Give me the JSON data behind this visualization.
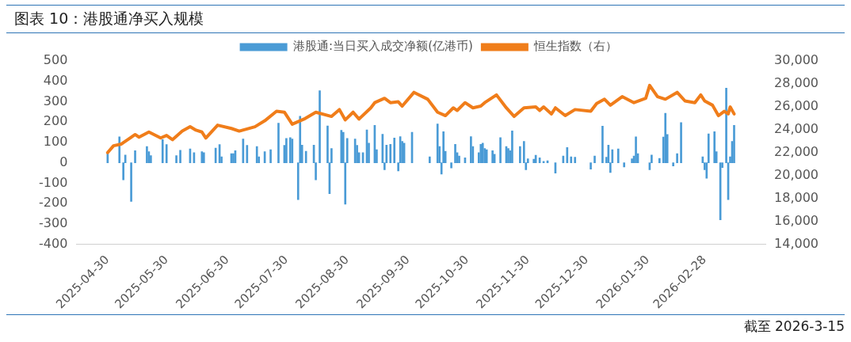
{
  "chart_data": {
    "type": "bar",
    "title": "图表 10：港股通净买入规模",
    "annotations": [
      "截至 2026-3-15"
    ],
    "xlim": [
      "2025-04-30",
      "2026-03-15"
    ],
    "xticks": [
      "2025-04-30",
      "2025-05-30",
      "2025-06-30",
      "2025-07-30",
      "2025-08-30",
      "2025-09-30",
      "2025-10-30",
      "2025-11-30",
      "2025-12-30",
      "2026-01-30",
      "2026-02-28"
    ],
    "ylim": [
      -400,
      500
    ],
    "yticks": [
      -400,
      -300,
      -200,
      -100,
      0,
      100,
      200,
      300,
      400,
      500
    ],
    "y2lim": [
      14000,
      30000
    ],
    "y2ticks": [
      {
        "value": 14000,
        "label": "14,000"
      },
      {
        "value": 16000,
        "label": "16,000"
      },
      {
        "value": 18000,
        "label": "18,000"
      },
      {
        "value": 20000,
        "label": "20,000"
      },
      {
        "value": 22000,
        "label": "22,000"
      },
      {
        "value": 24000,
        "label": "24,000"
      },
      {
        "value": 26000,
        "label": "26,000"
      },
      {
        "value": 28000,
        "label": "28,000"
      },
      {
        "value": 30000,
        "label": "30,000"
      }
    ],
    "grid": false,
    "legend": "top",
    "series": [
      {
        "name": "港股通:当日买入成交净额(亿港币)",
        "color": "#4a9bd6",
        "x": [
          "2025-04-30",
          "2025-05-06",
          "2025-05-08",
          "2025-05-09",
          "2025-05-12",
          "2025-05-14",
          "2025-05-20",
          "2025-05-21",
          "2025-05-22",
          "2025-05-28",
          "2025-05-30",
          "2025-06-04",
          "2025-06-06",
          "2025-06-11",
          "2025-06-13",
          "2025-06-17",
          "2025-06-18",
          "2025-06-24",
          "2025-06-26",
          "2025-06-27",
          "2025-07-02",
          "2025-07-03",
          "2025-07-04",
          "2025-07-08",
          "2025-07-10",
          "2025-07-15",
          "2025-07-16",
          "2025-07-19",
          "2025-07-22",
          "2025-07-26",
          "2025-07-29",
          "2025-07-30",
          "2025-08-01",
          "2025-08-02",
          "2025-08-05",
          "2025-08-06",
          "2025-08-07",
          "2025-08-09",
          "2025-08-13",
          "2025-08-14",
          "2025-08-16",
          "2025-08-20",
          "2025-08-21",
          "2025-08-22",
          "2025-08-27",
          "2025-08-28",
          "2025-08-29",
          "2025-08-30",
          "2025-09-03",
          "2025-09-04",
          "2025-09-05",
          "2025-09-07",
          "2025-09-09",
          "2025-09-10",
          "2025-09-13",
          "2025-09-14",
          "2025-09-17",
          "2025-09-18",
          "2025-09-19",
          "2025-09-21",
          "2025-09-23",
          "2025-09-25",
          "2025-09-26",
          "2025-09-27",
          "2025-09-28",
          "2025-10-02",
          "2025-10-11",
          "2025-10-15",
          "2025-10-16",
          "2025-10-17",
          "2025-10-18",
          "2025-10-19",
          "2025-10-22",
          "2025-10-24",
          "2025-10-25",
          "2025-10-26",
          "2025-10-29",
          "2025-11-01",
          "2025-11-02",
          "2025-11-05",
          "2025-11-06",
          "2025-11-07",
          "2025-11-08",
          "2025-11-09",
          "2025-11-12",
          "2025-11-13",
          "2025-11-16",
          "2025-11-19",
          "2025-11-20",
          "2025-11-21",
          "2025-11-22",
          "2025-11-26",
          "2025-11-28",
          "2025-11-29",
          "2025-11-30",
          "2025-12-03",
          "2025-12-04",
          "2025-12-06",
          "2025-12-08",
          "2025-12-10",
          "2025-12-14",
          "2025-12-18",
          "2025-12-20",
          "2025-12-22",
          "2025-12-24",
          "2026-01-01",
          "2026-01-03",
          "2026-01-07",
          "2026-01-09",
          "2026-01-10",
          "2026-01-11",
          "2026-01-12",
          "2026-01-15",
          "2026-01-18",
          "2026-01-22",
          "2026-01-23",
          "2026-01-24",
          "2026-01-25",
          "2026-01-31",
          "2026-02-01",
          "2026-02-05",
          "2026-02-07",
          "2026-02-08",
          "2026-02-09",
          "2026-02-12",
          "2026-02-14",
          "2026-02-16",
          "2026-02-27",
          "2026-02-28",
          "2026-03-01",
          "2026-03-02",
          "2026-03-05",
          "2026-03-06",
          "2026-03-08",
          "2026-03-09",
          "2026-03-11",
          "2026-03-12",
          "2026-03-13",
          "2026-03-14",
          "2026-03-15"
        ],
        "values": [
          45,
          128,
          -83,
          38,
          -189,
          60,
          80,
          55,
          35,
          114,
          90,
          35,
          62,
          68,
          50,
          55,
          50,
          72,
          90,
          30,
          45,
          45,
          60,
          117,
          86,
          80,
          30,
          55,
          65,
          195,
          86,
          120,
          124,
          117,
          -181,
          229,
          87,
          57,
          87,
          -83,
          354,
          181,
          -151,
          70,
          160,
          150,
          -203,
          120,
          117,
          86,
          50,
          50,
          162,
          97,
          184,
          65,
          140,
          -34,
          87,
          91,
          122,
          -40,
          129,
          105,
          97,
          150,
          30,
          191,
          80,
          -55,
          153,
          57,
          -25,
          91,
          50,
          33,
          25,
          129,
          80,
          50,
          91,
          97,
          70,
          65,
          60,
          42,
          124,
          80,
          70,
          60,
          157,
          80,
          105,
          -34,
          20,
          18,
          37,
          25,
          7,
          10,
          -50,
          33,
          75,
          30,
          28,
          -31,
          33,
          180,
          28,
          87,
          -48,
          65,
          68,
          -20,
          20,
          33,
          128,
          45,
          -34,
          38,
          22,
          127,
          243,
          139,
          -15,
          45,
          198,
          30,
          -34,
          -76,
          142,
          153,
          55,
          -280,
          -23,
          367,
          -181,
          30,
          105,
          184
        ]
      },
      {
        "name": "恒生指数（右）",
        "type": "line",
        "axis": "y2",
        "color": "#f07d1a",
        "marker": "none",
        "line_style": "solid",
        "x": [
          "2025-04-30",
          "2025-05-03",
          "2025-05-07",
          "2025-05-12",
          "2025-05-14",
          "2025-05-16",
          "2025-05-21",
          "2025-05-27",
          "2025-05-30",
          "2025-06-02",
          "2025-06-07",
          "2025-06-11",
          "2025-06-14",
          "2025-06-17",
          "2025-06-19",
          "2025-06-25",
          "2025-07-02",
          "2025-07-06",
          "2025-07-14",
          "2025-07-19",
          "2025-07-25",
          "2025-07-29",
          "2025-08-02",
          "2025-08-08",
          "2025-08-14",
          "2025-08-22",
          "2025-08-26",
          "2025-08-29",
          "2025-09-02",
          "2025-09-05",
          "2025-09-11",
          "2025-09-13",
          "2025-09-18",
          "2025-09-21",
          "2025-09-25",
          "2025-09-27",
          "2025-10-03",
          "2025-10-10",
          "2025-10-15",
          "2025-10-19",
          "2025-10-23",
          "2025-10-25",
          "2025-10-29",
          "2025-11-02",
          "2025-11-06",
          "2025-11-08",
          "2025-11-14",
          "2025-11-19",
          "2025-11-23",
          "2025-11-28",
          "2025-12-04",
          "2025-12-06",
          "2025-12-08",
          "2025-12-12",
          "2025-12-14",
          "2025-12-19",
          "2025-12-24",
          "2026-01-01",
          "2026-01-04",
          "2026-01-08",
          "2026-01-11",
          "2026-01-17",
          "2026-01-23",
          "2026-01-29",
          "2026-01-31",
          "2026-02-04",
          "2026-02-08",
          "2026-02-14",
          "2026-02-18",
          "2026-02-23",
          "2026-02-26",
          "2026-02-28",
          "2026-03-04",
          "2026-03-07",
          "2026-03-10",
          "2026-03-12",
          "2026-03-13",
          "2026-03-15"
        ],
        "values": [
          22000,
          22600,
          22750,
          23350,
          23580,
          23350,
          23800,
          23280,
          23500,
          23130,
          23880,
          24260,
          23960,
          23800,
          23280,
          24400,
          24110,
          23880,
          24260,
          24780,
          25610,
          25530,
          24480,
          24930,
          25530,
          25160,
          25760,
          24860,
          25530,
          24930,
          25910,
          26360,
          26740,
          26360,
          26440,
          26060,
          27260,
          26660,
          25530,
          25230,
          25910,
          25680,
          26360,
          25910,
          26060,
          26360,
          27040,
          25910,
          25160,
          25910,
          25990,
          25680,
          25990,
          25380,
          25910,
          25230,
          25760,
          25610,
          26290,
          26660,
          26140,
          26890,
          26360,
          26740,
          27870,
          26890,
          26660,
          27260,
          26510,
          26360,
          27040,
          26510,
          26140,
          25230,
          25610,
          25380,
          25990,
          25380
        ]
      }
    ]
  }
}
